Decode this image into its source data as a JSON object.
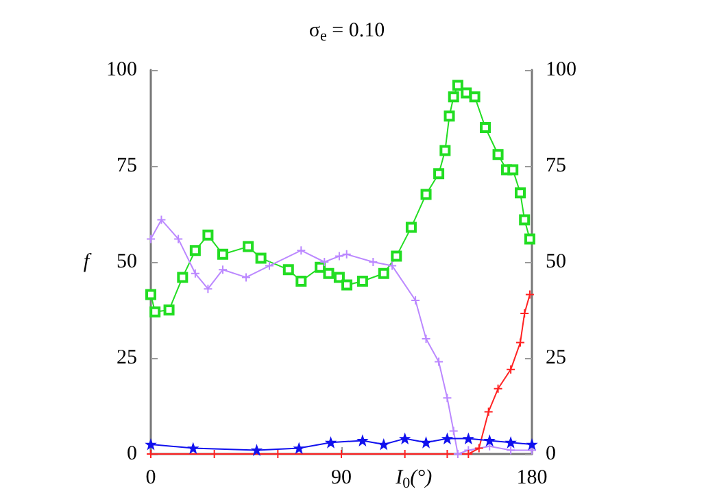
{
  "chart_data": {
    "type": "line",
    "title": "σ$_{e}$ = 0.10",
    "xlabel": "I$_{0}$(°)",
    "ylabel": "f",
    "xlim": [
      0,
      180
    ],
    "xticks": [
      0,
      90,
      180
    ],
    "ylim": [
      0,
      100
    ],
    "yticks": [
      0,
      25,
      50,
      75,
      100
    ],
    "y2lim": [
      0,
      100
    ],
    "y2ticks": [
      0,
      25,
      50,
      75,
      100
    ],
    "line_style": "solid",
    "series": [
      {
        "color": "#22dd22",
        "marker": "square",
        "x": [
          0,
          2,
          8.6,
          15,
          21,
          27,
          34,
          46,
          52,
          65,
          71,
          80,
          84,
          89,
          92.6,
          100,
          110,
          116,
          123,
          130,
          136,
          139,
          141,
          143,
          145,
          149,
          153,
          158,
          164,
          168,
          171,
          174.5,
          176.5,
          179
        ],
        "values": [
          41.5,
          37,
          37.5,
          46,
          53,
          57,
          52,
          54,
          51,
          48,
          45,
          48.6,
          47,
          46,
          44,
          45,
          47,
          51.5,
          59,
          67.6,
          73,
          79,
          88,
          93,
          96,
          94,
          93,
          85,
          78,
          74,
          74,
          68,
          61,
          56
        ]
      },
      {
        "color": "#bb88ff",
        "marker": "cross",
        "x": [
          0,
          5,
          13,
          21,
          27,
          34,
          45,
          56,
          71,
          82,
          89,
          92.5,
          105,
          114,
          125,
          130,
          136,
          140,
          143,
          145,
          150,
          160,
          170,
          180
        ],
        "values": [
          56,
          61,
          56,
          47,
          43,
          48,
          46,
          49,
          53,
          50,
          51.5,
          52,
          50,
          49,
          40,
          30,
          24,
          14.6,
          6,
          0,
          1,
          2,
          1,
          1
        ]
      },
      {
        "color": "#ff2222",
        "marker": "cross",
        "x": [
          0,
          30,
          60,
          90,
          120,
          140,
          150,
          155,
          159.5,
          164,
          170,
          174.5,
          176.5,
          179
        ],
        "values": [
          0,
          0,
          0,
          0,
          0,
          0,
          0,
          1.5,
          11,
          17,
          22,
          29,
          36.6,
          41.5
        ]
      },
      {
        "color": "#1111ee",
        "marker": "star",
        "x": [
          0,
          20,
          50,
          70,
          85,
          100,
          110,
          120,
          130,
          140,
          150,
          160,
          170,
          180
        ],
        "values": [
          2.5,
          1.5,
          1,
          1.5,
          3,
          3.5,
          2.5,
          4,
          3,
          4,
          4,
          3.5,
          3,
          2.5
        ]
      }
    ]
  }
}
